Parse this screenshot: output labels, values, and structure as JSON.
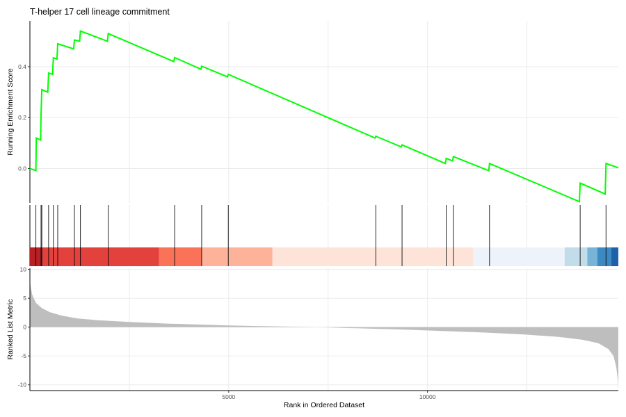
{
  "chart_data": {
    "type": "line",
    "title": "T-helper 17 cell lineage commitment",
    "xlabel": "Rank in Ordered Dataset",
    "x_ticks": [
      5000,
      10000
    ],
    "xlim": [
      0,
      14800
    ],
    "grid": true,
    "enrichment_panel": {
      "ylabel": "Running Enrichment Score",
      "ylim": [
        -0.135,
        0.58
      ],
      "y_ticks": [
        0.0,
        0.2,
        0.4
      ],
      "line_color": "#00ff00",
      "points": [
        [
          0,
          0.0
        ],
        [
          150,
          -0.008
        ],
        [
          160,
          0.12
        ],
        [
          270,
          0.112
        ],
        [
          280,
          0.21
        ],
        [
          300,
          0.31
        ],
        [
          450,
          0.3
        ],
        [
          470,
          0.375
        ],
        [
          570,
          0.37
        ],
        [
          590,
          0.435
        ],
        [
          680,
          0.43
        ],
        [
          700,
          0.49
        ],
        [
          1100,
          0.47
        ],
        [
          1120,
          0.505
        ],
        [
          1250,
          0.5
        ],
        [
          1270,
          0.54
        ],
        [
          1950,
          0.5
        ],
        [
          1970,
          0.53
        ],
        [
          3620,
          0.42
        ],
        [
          3640,
          0.436
        ],
        [
          4300,
          0.39
        ],
        [
          4320,
          0.402
        ],
        [
          4970,
          0.36
        ],
        [
          4990,
          0.37
        ],
        [
          8680,
          0.12
        ],
        [
          8700,
          0.127
        ],
        [
          9340,
          0.085
        ],
        [
          9360,
          0.093
        ],
        [
          10450,
          0.02
        ],
        [
          10470,
          0.04
        ],
        [
          10630,
          0.03
        ],
        [
          10650,
          0.047
        ],
        [
          11540,
          -0.008
        ],
        [
          11560,
          0.02
        ],
        [
          13820,
          -0.13
        ],
        [
          13840,
          -0.057
        ],
        [
          14470,
          -0.1
        ],
        [
          14490,
          0.02
        ],
        [
          14800,
          0.003
        ]
      ]
    },
    "hit_positions": [
      150,
      280,
      300,
      470,
      590,
      700,
      1120,
      1270,
      1970,
      3640,
      4320,
      4990,
      8700,
      9360,
      10470,
      10650,
      11560,
      13840,
      14490
    ],
    "heat_bands": [
      {
        "from": 0,
        "to": 320,
        "color": "#b82025"
      },
      {
        "from": 320,
        "to": 3250,
        "color": "#e3413c"
      },
      {
        "from": 3250,
        "to": 4320,
        "color": "#fa7258"
      },
      {
        "from": 4320,
        "to": 6100,
        "color": "#fcb39a"
      },
      {
        "from": 6100,
        "to": 11150,
        "color": "#fee3d8"
      },
      {
        "from": 11150,
        "to": 13450,
        "color": "#eef3fb"
      },
      {
        "from": 13450,
        "to": 14020,
        "color": "#c2dcea"
      },
      {
        "from": 14020,
        "to": 14270,
        "color": "#78b4d8"
      },
      {
        "from": 14270,
        "to": 14620,
        "color": "#3d89c2"
      },
      {
        "from": 14620,
        "to": 14800,
        "color": "#1f61a8"
      }
    ],
    "ranked_panel": {
      "ylabel": "Ranked List Metric",
      "ylim": [
        -11,
        10.2
      ],
      "y_ticks": [
        10,
        5,
        0,
        -5,
        -10
      ],
      "fill_color": "#bebebe",
      "points": [
        [
          0,
          8.2
        ],
        [
          20,
          7.0
        ],
        [
          60,
          5.6
        ],
        [
          150,
          4.2
        ],
        [
          300,
          3.3
        ],
        [
          500,
          2.6
        ],
        [
          800,
          2.0
        ],
        [
          1200,
          1.5
        ],
        [
          1700,
          1.2
        ],
        [
          2500,
          0.9
        ],
        [
          3500,
          0.6
        ],
        [
          5000,
          0.3
        ],
        [
          6000,
          0.15
        ],
        [
          6800,
          0.05
        ],
        [
          7500,
          -0.05
        ],
        [
          8500,
          -0.25
        ],
        [
          9500,
          -0.45
        ],
        [
          10500,
          -0.7
        ],
        [
          11500,
          -0.95
        ],
        [
          12500,
          -1.3
        ],
        [
          13300,
          -1.7
        ],
        [
          13900,
          -2.2
        ],
        [
          14300,
          -2.8
        ],
        [
          14550,
          -3.8
        ],
        [
          14680,
          -5.0
        ],
        [
          14750,
          -7.0
        ],
        [
          14785,
          -9.0
        ],
        [
          14800,
          -10.8
        ]
      ]
    }
  }
}
